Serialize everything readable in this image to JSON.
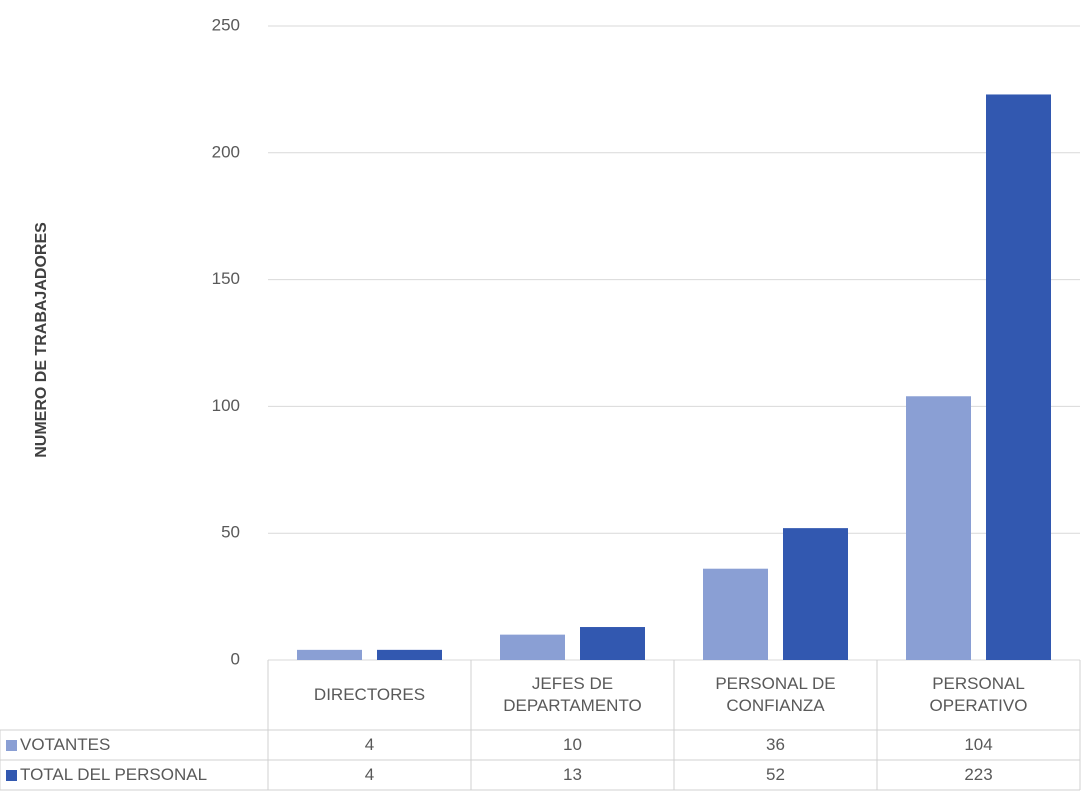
{
  "chart_data": {
    "type": "bar",
    "y_label": "NUMERO DE TRABAJADORES",
    "categories": [
      "DIRECTORES",
      "JEFES DE DEPARTAMENTO",
      "PERSONAL DE CONFIANZA",
      "PERSONAL OPERATIVO"
    ],
    "series": [
      {
        "name": "VOTANTES",
        "color": "#8a9fd4",
        "values": [
          4,
          10,
          36,
          104
        ]
      },
      {
        "name": "TOTAL DEL PERSONAL",
        "color": "#3258b0",
        "values": [
          4,
          13,
          52,
          223
        ]
      }
    ],
    "ylim": [
      0,
      250
    ],
    "yticks": [
      0,
      50,
      100,
      150,
      200,
      250
    ],
    "grid": true
  }
}
